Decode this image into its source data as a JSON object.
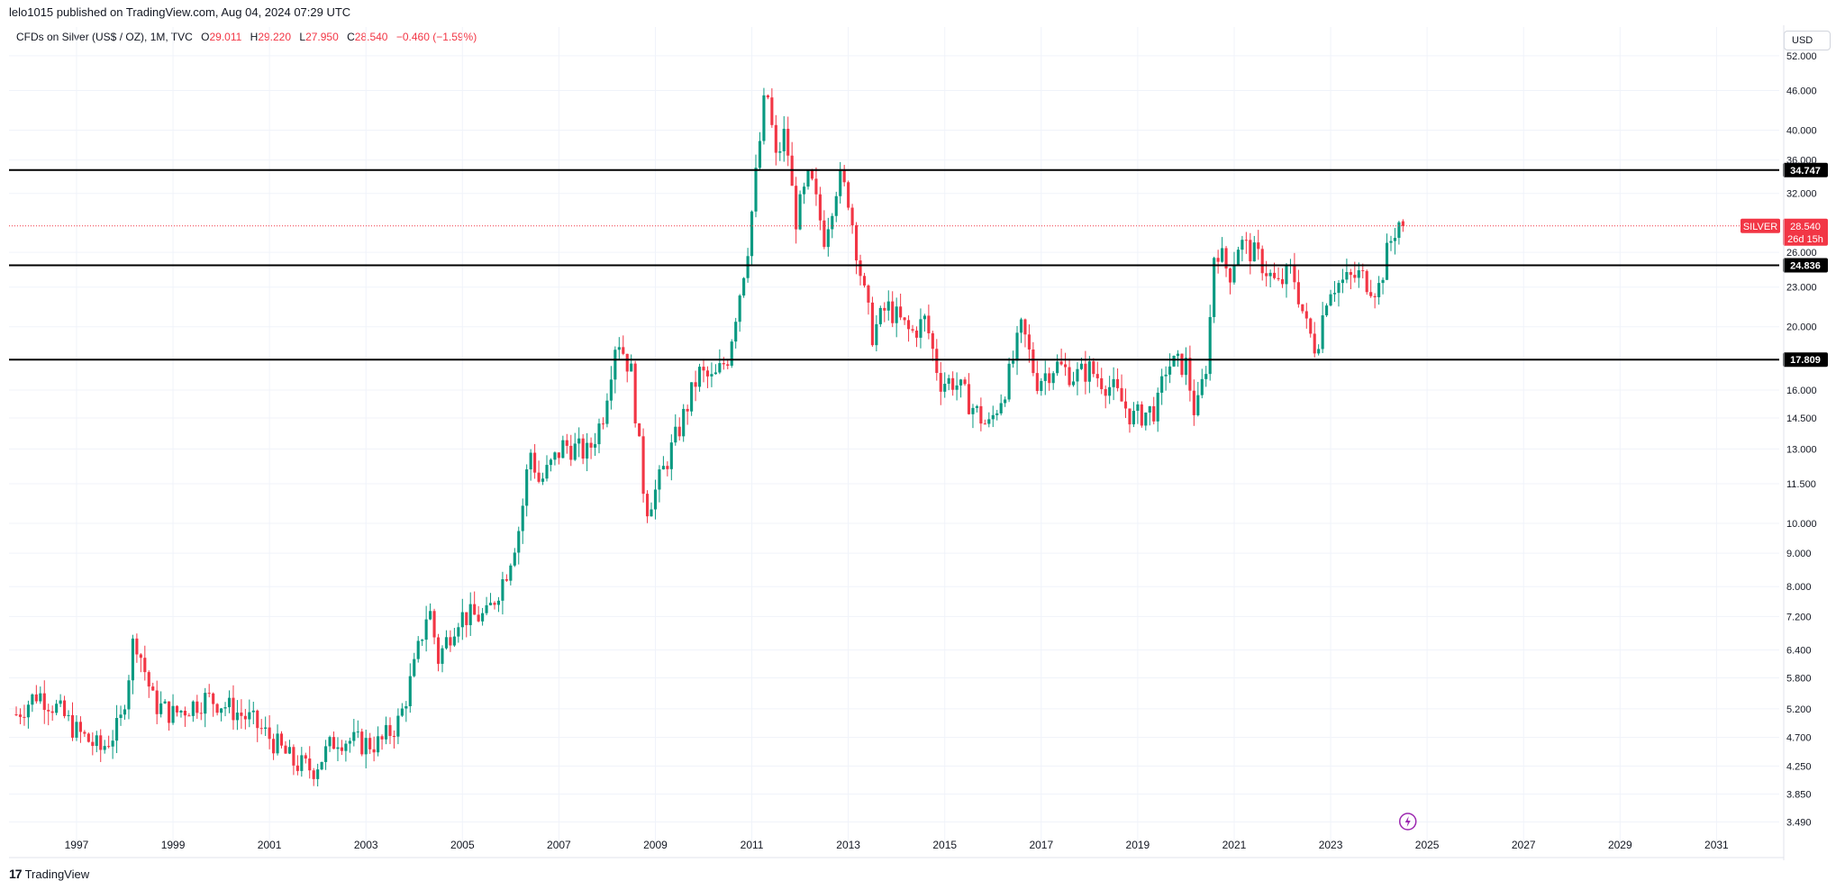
{
  "header": {
    "published": "lelo1015 published on TradingView.com, Aug 04, 2024 07:29 UTC"
  },
  "legend": {
    "symbol": "CFDs on Silver (US$ / OZ), 1M, TVC",
    "o_label": "O",
    "o_value": "29.011",
    "h_label": "H",
    "h_value": "29.220",
    "l_label": "L",
    "l_value": "27.950",
    "c_label": "C",
    "c_value": "28.540",
    "change": "−0.460 (−1.59%)"
  },
  "toolbar": {
    "currency": "USD"
  },
  "footer": {
    "brand": "TradingView",
    "logo_text": "17"
  },
  "colors": {
    "up": "#089981",
    "down": "#f23645",
    "grid": "#f0f3fa",
    "hline": "#000000",
    "price_line": "#f23645",
    "flash_icon": "#9c27b0"
  },
  "icons": {
    "replay": "flash-icon"
  },
  "chart_data": {
    "type": "candlestick",
    "scale": "log",
    "ylim": [
      3.3,
      54
    ],
    "xlim": [
      1995.6,
      2032.3
    ],
    "y_ticks": [
      52,
      46,
      40,
      36,
      32,
      26,
      23,
      20,
      16,
      14.5,
      13,
      11.5,
      10,
      9,
      8,
      7.2,
      6.4,
      5.8,
      5.2,
      4.7,
      4.25,
      3.85,
      3.49
    ],
    "y_tick_labels": [
      "52.000",
      "46.000",
      "40.000",
      "36.000",
      "32.000",
      "26.000",
      "23.000",
      "20.000",
      "16.000",
      "14.500",
      "13.000",
      "11.500",
      "10.000",
      "9.000",
      "8.000",
      "7.200",
      "6.400",
      "5.800",
      "5.200",
      "4.700",
      "4.250",
      "3.850",
      "3.490"
    ],
    "x_ticks": [
      1997,
      1999,
      2001,
      2003,
      2005,
      2007,
      2009,
      2011,
      2013,
      2015,
      2017,
      2019,
      2021,
      2023,
      2025,
      2027,
      2029,
      2031
    ],
    "x_tick_labels": [
      "1997",
      "1999",
      "2001",
      "2003",
      "2005",
      "2007",
      "2009",
      "2011",
      "2013",
      "2015",
      "2017",
      "2019",
      "2021",
      "2023",
      "2025",
      "2027",
      "2029",
      "2031"
    ],
    "horizontal_levels": [
      {
        "value": 34.747,
        "label": "34.747"
      },
      {
        "value": 24.836,
        "label": "24.836"
      },
      {
        "value": 17.809,
        "label": "17.809"
      }
    ],
    "last_price": {
      "value": 28.54,
      "label": "28.540",
      "symbol": "SILVER",
      "countdown": "26d 15h"
    },
    "anchors": [
      [
        1995.75,
        5.1
      ],
      [
        1996.2,
        5.5
      ],
      [
        1996.6,
        5.2
      ],
      [
        1997.0,
        4.8
      ],
      [
        1997.5,
        4.5
      ],
      [
        1997.9,
        4.9
      ],
      [
        1998.1,
        6.0
      ],
      [
        1998.2,
        6.8
      ],
      [
        1998.6,
        5.3
      ],
      [
        1999.0,
        5.1
      ],
      [
        1999.7,
        5.4
      ],
      [
        2000.0,
        5.3
      ],
      [
        2000.6,
        5.0
      ],
      [
        2001.0,
        4.7
      ],
      [
        2001.5,
        4.3
      ],
      [
        2001.9,
        4.2
      ],
      [
        2002.4,
        4.7
      ],
      [
        2002.9,
        4.6
      ],
      [
        2003.3,
        4.6
      ],
      [
        2003.7,
        5.0
      ],
      [
        2004.0,
        6.0
      ],
      [
        2004.3,
        7.5
      ],
      [
        2004.5,
        6.2
      ],
      [
        2004.9,
        7.2
      ],
      [
        2005.5,
        7.2
      ],
      [
        2005.9,
        8.4
      ],
      [
        2006.2,
        10.0
      ],
      [
        2006.4,
        13.0
      ],
      [
        2006.6,
        11.5
      ],
      [
        2007.1,
        13.2
      ],
      [
        2007.6,
        12.8
      ],
      [
        2007.9,
        14.5
      ],
      [
        2008.2,
        19.5
      ],
      [
        2008.5,
        17.0
      ],
      [
        2008.8,
        10.5
      ],
      [
        2009.0,
        11.2
      ],
      [
        2009.5,
        14.0
      ],
      [
        2009.9,
        17.0
      ],
      [
        2010.2,
        16.5
      ],
      [
        2010.5,
        18.0
      ],
      [
        2010.9,
        26.0
      ],
      [
        2011.0,
        30.0
      ],
      [
        2011.3,
        47.0
      ],
      [
        2011.5,
        36.0
      ],
      [
        2011.7,
        40.0
      ],
      [
        2011.9,
        29.0
      ],
      [
        2012.2,
        34.0
      ],
      [
        2012.5,
        27.5
      ],
      [
        2012.8,
        34.0
      ],
      [
        2013.0,
        31.5
      ],
      [
        2013.3,
        23.0
      ],
      [
        2013.5,
        19.5
      ],
      [
        2013.8,
        21.5
      ],
      [
        2014.3,
        19.5
      ],
      [
        2014.6,
        20.5
      ],
      [
        2014.9,
        16.5
      ],
      [
        2015.2,
        16.5
      ],
      [
        2015.6,
        15.0
      ],
      [
        2015.9,
        14.0
      ],
      [
        2016.3,
        16.5
      ],
      [
        2016.6,
        20.0
      ],
      [
        2016.9,
        16.5
      ],
      [
        2017.3,
        17.5
      ],
      [
        2017.7,
        16.8
      ],
      [
        2018.0,
        17.2
      ],
      [
        2018.5,
        16.0
      ],
      [
        2018.9,
        14.5
      ],
      [
        2019.4,
        15.0
      ],
      [
        2019.6,
        17.5
      ],
      [
        2020.0,
        17.5
      ],
      [
        2020.2,
        14.5
      ],
      [
        2020.45,
        18.0
      ],
      [
        2020.6,
        27.0
      ],
      [
        2020.9,
        24.0
      ],
      [
        2021.1,
        27.0
      ],
      [
        2021.5,
        25.5
      ],
      [
        2021.9,
        23.0
      ],
      [
        2022.2,
        24.5
      ],
      [
        2022.5,
        20.0
      ],
      [
        2022.7,
        18.5
      ],
      [
        2022.95,
        23.0
      ],
      [
        2023.3,
        23.5
      ],
      [
        2023.6,
        24.0
      ],
      [
        2023.9,
        23.0
      ],
      [
        2024.0,
        23.0
      ],
      [
        2024.2,
        26.5
      ],
      [
        2024.4,
        29.0
      ],
      [
        2024.55,
        28.54
      ]
    ]
  }
}
